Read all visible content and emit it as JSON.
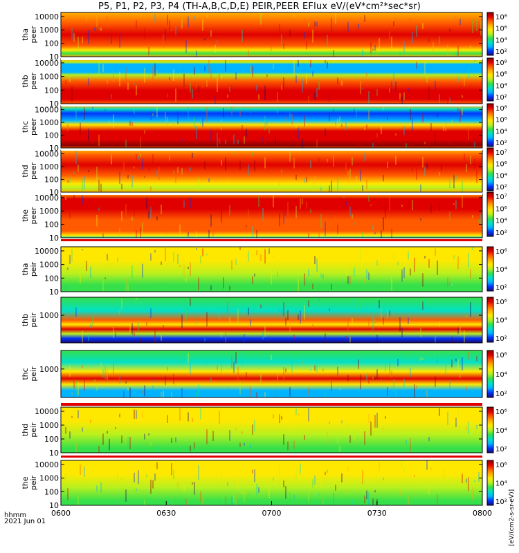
{
  "title": "P5, P1, P2, P3, P4 (TH-A,B,C,D,E) PEIR,PEER EFlux eV/(eV*cm²*sec*sr)",
  "colorbar_label": "[eV/(cm2-s-sr-eV)]",
  "colormap": [
    "#1c0a6b",
    "#0033ff",
    "#00b4ff",
    "#00e0c8",
    "#35e04a",
    "#b8f01e",
    "#ffe800",
    "#ffb000",
    "#ff5a00",
    "#e00000",
    "#8a0000"
  ],
  "time_axis": {
    "header": [
      "hhmm",
      "2021 Jun 01"
    ],
    "ticks": [
      "0600",
      "0630",
      "0700",
      "0730",
      "0800"
    ]
  },
  "chart_data": [
    {
      "type": "heatmap",
      "probe": "tha",
      "species": "peer",
      "ylabel": [
        "tha",
        "peer"
      ],
      "yticks": [
        "10000",
        "1000",
        "100",
        "10"
      ],
      "ylim": [
        10,
        20000
      ],
      "y_scale": "log",
      "x_range": [
        "0600",
        "0800"
      ],
      "colorbar_ticks": [
        "10⁸",
        "10⁶",
        "10⁴",
        "10²"
      ]
    },
    {
      "type": "heatmap",
      "probe": "thb",
      "species": "peer",
      "ylabel": [
        "thb",
        "peer"
      ],
      "yticks": [
        "10000",
        "1000",
        "100",
        "10"
      ],
      "ylim": [
        10,
        20000
      ],
      "y_scale": "log",
      "x_range": [
        "0600",
        "0800"
      ],
      "colorbar_ticks": [
        "10⁸",
        "10⁶",
        "10⁴",
        "10²"
      ]
    },
    {
      "type": "heatmap",
      "probe": "thc",
      "species": "peer",
      "ylabel": [
        "thc",
        "peer"
      ],
      "yticks": [
        "10000",
        "1000",
        "100",
        "10"
      ],
      "ylim": [
        10,
        20000
      ],
      "y_scale": "log",
      "x_range": [
        "0600",
        "0800"
      ],
      "colorbar_ticks": [
        "10⁸",
        "10⁶",
        "10⁴",
        "10²"
      ]
    },
    {
      "type": "heatmap",
      "probe": "thd",
      "species": "peer",
      "ylabel": [
        "thd",
        "peer"
      ],
      "yticks": [
        "10000",
        "1000",
        "100",
        "10"
      ],
      "ylim": [
        10,
        20000
      ],
      "y_scale": "log",
      "x_range": [
        "0600",
        "0800"
      ],
      "colorbar_ticks": [
        "10⁷",
        "10⁶",
        "10⁴",
        "10²"
      ]
    },
    {
      "type": "heatmap",
      "probe": "the",
      "species": "peer",
      "ylabel": [
        "the",
        "peer"
      ],
      "yticks": [
        "10000",
        "1000",
        "100",
        "10"
      ],
      "ylim": [
        10,
        20000
      ],
      "y_scale": "log",
      "x_range": [
        "0600",
        "0800"
      ],
      "colorbar_ticks": [
        "10⁷",
        "10⁶",
        "10⁴",
        "10²"
      ]
    },
    {
      "type": "heatmap",
      "probe": "tha",
      "species": "peir",
      "ylabel": [
        "tha",
        "peir"
      ],
      "yticks": [
        "10000",
        "1000",
        "100",
        "10"
      ],
      "ylim": [
        10,
        20000
      ],
      "y_scale": "log",
      "x_range": [
        "0600",
        "0800"
      ],
      "colorbar_ticks": [
        "10⁶",
        "10⁴",
        "10²"
      ]
    },
    {
      "type": "heatmap",
      "probe": "thb",
      "species": "peir",
      "ylabel": [
        "thb",
        "peir"
      ],
      "yticks": [
        "1000"
      ],
      "ylim": [
        10,
        20000
      ],
      "y_scale": "log",
      "x_range": [
        "0600",
        "0800"
      ],
      "colorbar_ticks": [
        "10⁶",
        "10⁴",
        "10²"
      ]
    },
    {
      "type": "heatmap",
      "probe": "thc",
      "species": "peir",
      "ylabel": [
        "thc",
        "peir"
      ],
      "yticks": [
        "1000"
      ],
      "ylim": [
        10,
        20000
      ],
      "y_scale": "log",
      "x_range": [
        "0600",
        "0800"
      ],
      "colorbar_ticks": [
        "10⁶",
        "10⁴",
        "10²"
      ]
    },
    {
      "type": "heatmap",
      "probe": "thd",
      "species": "peir",
      "ylabel": [
        "thd",
        "peir"
      ],
      "yticks": [
        "10000",
        "1000",
        "100",
        "10"
      ],
      "ylim": [
        10,
        20000
      ],
      "y_scale": "log",
      "x_range": [
        "0600",
        "0800"
      ],
      "colorbar_ticks": [
        "10⁶",
        "10⁴",
        "10²"
      ]
    },
    {
      "type": "heatmap",
      "probe": "the",
      "species": "peir",
      "ylabel": [
        "the",
        "peir"
      ],
      "yticks": [
        "10000",
        "1000",
        "100",
        "10"
      ],
      "ylim": [
        10,
        20000
      ],
      "y_scale": "log",
      "x_range": [
        "0600",
        "0800"
      ],
      "colorbar_ticks": [
        "10⁶",
        "10⁴",
        "10²"
      ]
    }
  ]
}
